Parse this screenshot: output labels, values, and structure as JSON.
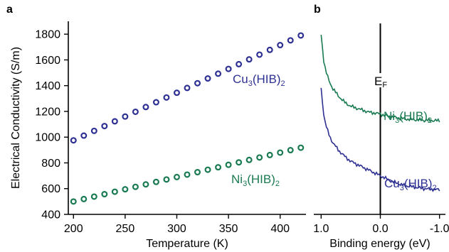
{
  "chart_data": [
    {
      "panel_label": "a",
      "type": "scatter",
      "xlabel": "Temperature (K)",
      "ylabel": "Electrical Conductivity (S/m)",
      "xlim": [
        195,
        425
      ],
      "ylim": [
        400,
        1900
      ],
      "xticks": [
        200,
        250,
        300,
        350,
        400
      ],
      "yticks": [
        400,
        600,
        800,
        1000,
        1200,
        1400,
        1600,
        1800
      ],
      "grid": false,
      "series": [
        {
          "name": "Cu3(HIB)2",
          "label_base": "Cu",
          "label_sub1": "3",
          "label_mid": "(HIB)",
          "label_sub2": "2",
          "color": "#2e3192",
          "x": [
            200,
            210,
            220,
            230,
            240,
            250,
            260,
            270,
            280,
            290,
            300,
            310,
            320,
            330,
            340,
            350,
            360,
            370,
            380,
            390,
            400,
            410,
            420
          ],
          "y": [
            975,
            1012,
            1049,
            1086,
            1123,
            1160,
            1197,
            1234,
            1271,
            1308,
            1345,
            1382,
            1419,
            1456,
            1493,
            1530,
            1567,
            1604,
            1641,
            1678,
            1715,
            1752,
            1790
          ]
        },
        {
          "name": "Ni3(HIB)2",
          "label_base": "Ni",
          "label_sub1": "3",
          "label_mid": "(HIB)",
          "label_sub2": "2",
          "color": "#1a7a52",
          "x": [
            200,
            210,
            220,
            230,
            240,
            250,
            260,
            270,
            280,
            290,
            300,
            310,
            320,
            330,
            340,
            350,
            360,
            370,
            380,
            390,
            400,
            410,
            420
          ],
          "y": [
            500,
            519,
            538,
            557,
            576,
            595,
            614,
            633,
            652,
            671,
            690,
            709,
            728,
            747,
            766,
            785,
            804,
            823,
            842,
            861,
            880,
            899,
            918
          ]
        }
      ]
    },
    {
      "panel_label": "b",
      "type": "line",
      "xlabel": "Binding energy (eV)",
      "ylabel": "",
      "xlim": [
        1.1,
        -1.1
      ],
      "xticks": [
        1.0,
        0.0,
        -1.0
      ],
      "xtick_labels": [
        "1.0",
        "0.0",
        "-1.0"
      ],
      "fermi_level_label_base": "E",
      "fermi_level_label_sub": "F",
      "fermi_level_x": 0.0,
      "ylim": [
        0,
        1
      ],
      "series": [
        {
          "name": "Ni3(HIB)2",
          "label_base": "Ni",
          "label_sub1": "3",
          "label_mid": "(HIB)",
          "label_sub2": "2",
          "color": "#1a7a52",
          "x": [
            1.0,
            0.95,
            0.9,
            0.85,
            0.8,
            0.7,
            0.6,
            0.5,
            0.4,
            0.3,
            0.2,
            0.1,
            0.0,
            -0.1,
            -0.2,
            -0.3,
            -0.4,
            -0.5,
            -0.6,
            -0.7,
            -0.8,
            -0.9,
            -1.0
          ],
          "y": [
            0.93,
            0.78,
            0.72,
            0.68,
            0.65,
            0.61,
            0.58,
            0.56,
            0.55,
            0.54,
            0.53,
            0.525,
            0.52,
            0.51,
            0.505,
            0.5,
            0.495,
            0.492,
            0.49,
            0.488,
            0.487,
            0.486,
            0.485
          ]
        },
        {
          "name": "Cu3(HIB)2",
          "label_base": "Cu",
          "label_sub1": "3",
          "label_mid": "(HIB)",
          "label_sub2": "2",
          "color": "#2e3192",
          "x": [
            1.0,
            0.95,
            0.9,
            0.85,
            0.8,
            0.7,
            0.6,
            0.5,
            0.4,
            0.3,
            0.2,
            0.1,
            0.0,
            -0.1,
            -0.2,
            -0.3,
            -0.4,
            -0.5,
            -0.6,
            -0.7,
            -0.8,
            -0.9,
            -1.0
          ],
          "y": [
            0.65,
            0.5,
            0.44,
            0.4,
            0.37,
            0.33,
            0.3,
            0.275,
            0.26,
            0.245,
            0.23,
            0.215,
            0.2,
            0.185,
            0.17,
            0.16,
            0.15,
            0.145,
            0.14,
            0.135,
            0.132,
            0.13,
            0.128
          ]
        }
      ]
    }
  ]
}
